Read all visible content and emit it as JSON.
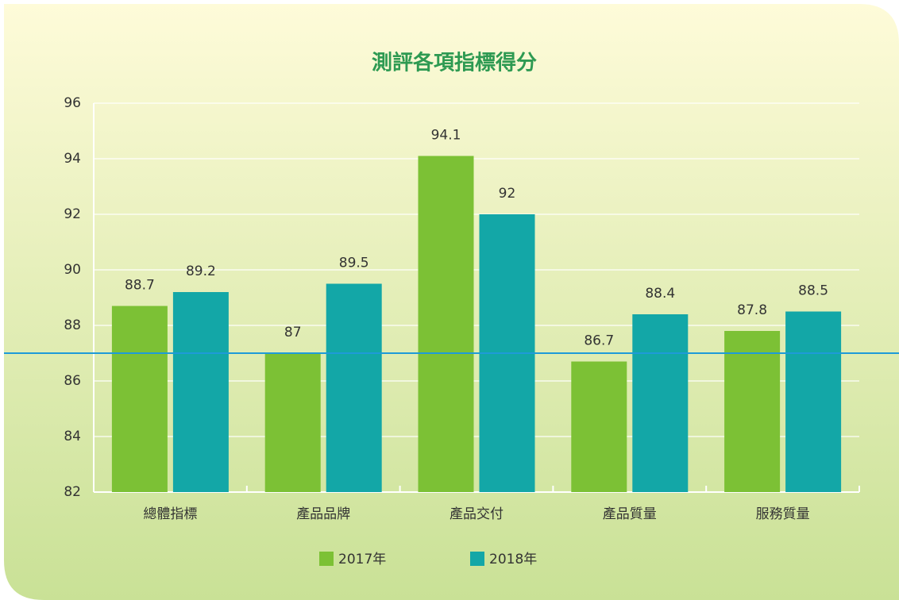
{
  "chart_data": {
    "type": "bar",
    "title": "測評各項指標得分",
    "categories": [
      "總體指標",
      "產品品牌",
      "產品交付",
      "產品質量",
      "服務質量"
    ],
    "series": [
      {
        "name": "2017年",
        "color": "#7cc135",
        "values": [
          88.7,
          87,
          94.1,
          86.7,
          87.8
        ]
      },
      {
        "name": "2018年",
        "color": "#13a7a7",
        "values": [
          89.2,
          89.5,
          92,
          88.4,
          88.5
        ]
      }
    ],
    "ylim": [
      82,
      96
    ],
    "yticks": [
      82,
      84,
      86,
      88,
      90,
      92,
      94,
      96
    ],
    "grid": true,
    "reference_line": {
      "value": 87,
      "color": "#1e9bd8"
    },
    "legend": "bottom"
  }
}
